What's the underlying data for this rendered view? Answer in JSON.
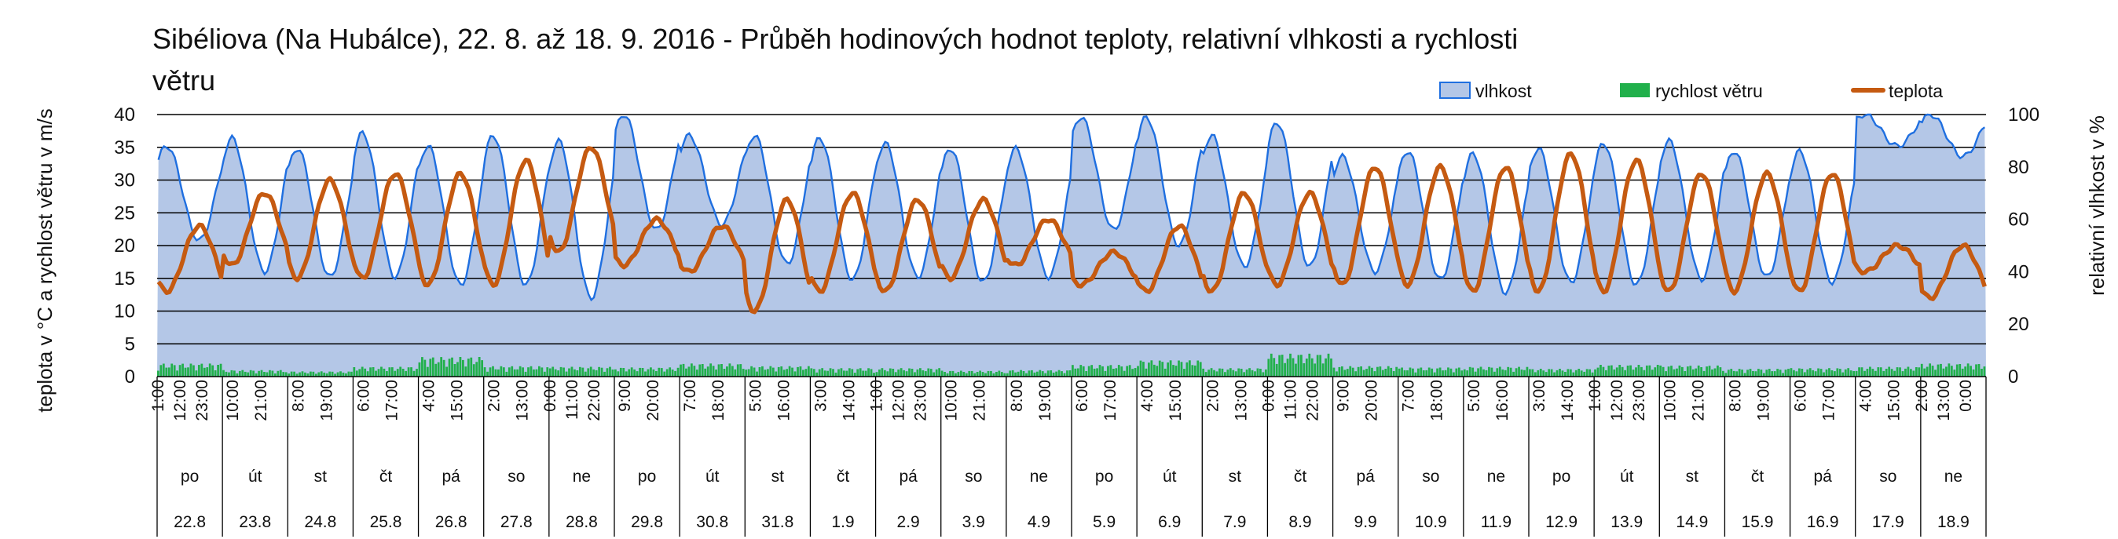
{
  "chart_data": {
    "type": "area",
    "title_line1": "Sibéliova (Na Hubálce), 22. 8. až 18. 9. 2016 - Průběh hodinových hodnot teploty, relativní vlhkosti a rychlosti",
    "title_line2": "větru",
    "ylabel_left": "teplota v °C a rychlost větru v m/s",
    "ylabel_right": "relativní vlhkost v %",
    "y_left_lim": [
      0,
      40
    ],
    "y_left_ticks": [
      "0",
      "5",
      "10",
      "15",
      "20",
      "25",
      "30",
      "35",
      "40"
    ],
    "y_right_lim": [
      0,
      100
    ],
    "y_right_ticks": [
      "0",
      "20",
      "40",
      "60",
      "80",
      "100"
    ],
    "grid": "horizontal",
    "legend_position": "top-right",
    "colors": {
      "humidity_fill": "#b4c7e7",
      "humidity_line": "#1f6fe0",
      "wind": "#21b04b",
      "temperature": "#c55a11",
      "grid": "#000000"
    },
    "legend": [
      {
        "key": "humidity",
        "label": "vlhkost"
      },
      {
        "key": "wind",
        "label": "rychlost větru"
      },
      {
        "key": "temperature",
        "label": "teplota"
      }
    ],
    "days": [
      {
        "date": "22.8",
        "weekday": "po",
        "hours": [
          "1:00",
          "12:00",
          "23:00"
        ]
      },
      {
        "date": "23.8",
        "weekday": "út",
        "hours": [
          "10:00",
          "21:00"
        ]
      },
      {
        "date": "24.8",
        "weekday": "st",
        "hours": [
          "8:00",
          "19:00"
        ]
      },
      {
        "date": "25.8",
        "weekday": "čt",
        "hours": [
          "6:00",
          "17:00"
        ]
      },
      {
        "date": "26.8",
        "weekday": "pá",
        "hours": [
          "4:00",
          "15:00"
        ]
      },
      {
        "date": "27.8",
        "weekday": "so",
        "hours": [
          "2:00",
          "13:00"
        ]
      },
      {
        "date": "28.8",
        "weekday": "ne",
        "hours": [
          "0:00",
          "11:00",
          "22:00"
        ]
      },
      {
        "date": "29.8",
        "weekday": "po",
        "hours": [
          "9:00",
          "20:00"
        ]
      },
      {
        "date": "30.8",
        "weekday": "út",
        "hours": [
          "7:00",
          "18:00"
        ]
      },
      {
        "date": "31.8",
        "weekday": "st",
        "hours": [
          "5:00",
          "16:00"
        ]
      },
      {
        "date": "1.9",
        "weekday": "čt",
        "hours": [
          "3:00",
          "14:00"
        ]
      },
      {
        "date": "2.9",
        "weekday": "pá",
        "hours": [
          "1:00",
          "12:00",
          "23:00"
        ]
      },
      {
        "date": "3.9",
        "weekday": "so",
        "hours": [
          "10:00",
          "21:00"
        ]
      },
      {
        "date": "4.9",
        "weekday": "ne",
        "hours": [
          "8:00",
          "19:00"
        ]
      },
      {
        "date": "5.9",
        "weekday": "po",
        "hours": [
          "6:00",
          "17:00"
        ]
      },
      {
        "date": "6.9",
        "weekday": "út",
        "hours": [
          "4:00",
          "15:00"
        ]
      },
      {
        "date": "7.9",
        "weekday": "st",
        "hours": [
          "2:00",
          "13:00"
        ]
      },
      {
        "date": "8.9",
        "weekday": "čt",
        "hours": [
          "0:00",
          "11:00",
          "22:00"
        ]
      },
      {
        "date": "9.9",
        "weekday": "pá",
        "hours": [
          "9:00",
          "20:00"
        ]
      },
      {
        "date": "10.9",
        "weekday": "so",
        "hours": [
          "7:00",
          "18:00"
        ]
      },
      {
        "date": "11.9",
        "weekday": "ne",
        "hours": [
          "5:00",
          "16:00"
        ]
      },
      {
        "date": "12.9",
        "weekday": "po",
        "hours": [
          "3:00",
          "14:00"
        ]
      },
      {
        "date": "13.9",
        "weekday": "út",
        "hours": [
          "1:00",
          "12:00",
          "23:00"
        ]
      },
      {
        "date": "14.9",
        "weekday": "st",
        "hours": [
          "10:00",
          "21:00"
        ]
      },
      {
        "date": "15.9",
        "weekday": "čt",
        "hours": [
          "8:00",
          "19:00"
        ]
      },
      {
        "date": "16.9",
        "weekday": "pá",
        "hours": [
          "6:00",
          "17:00"
        ]
      },
      {
        "date": "17.9",
        "weekday": "so",
        "hours": [
          "4:00",
          "15:00"
        ]
      },
      {
        "date": "18.9",
        "weekday": "ne",
        "hours": [
          "2:00",
          "13:00",
          "0:00"
        ]
      }
    ],
    "daily_series": {
      "temperature_min": [
        13,
        17,
        15,
        15,
        14,
        14,
        19,
        17,
        16,
        10,
        13,
        13,
        15,
        17,
        14,
        13,
        13,
        14,
        14,
        14,
        13,
        13,
        13,
        13,
        13,
        13,
        16,
        12
      ],
      "temperature_max": [
        23,
        28,
        30,
        31,
        31,
        33,
        35,
        24,
        23,
        27,
        28,
        27,
        27,
        24,
        19,
        23,
        28,
        28,
        32,
        32,
        32,
        34,
        33,
        31,
        31,
        31,
        20,
        20
      ],
      "humidity_min": [
        52,
        40,
        38,
        38,
        35,
        35,
        30,
        56,
        58,
        43,
        37,
        38,
        36,
        38,
        56,
        50,
        42,
        42,
        40,
        37,
        32,
        36,
        35,
        37,
        38,
        36,
        88,
        84
      ],
      "humidity_max": [
        88,
        91,
        87,
        93,
        88,
        92,
        90,
        100,
        92,
        92,
        91,
        89,
        87,
        87,
        99,
        99,
        92,
        97,
        84,
        86,
        85,
        87,
        89,
        90,
        86,
        86,
        100,
        100
      ],
      "wind_max": [
        2.0,
        1.0,
        0.8,
        1.5,
        3.0,
        1.6,
        1.5,
        1.4,
        2.0,
        1.6,
        1.3,
        1.3,
        0.9,
        1.0,
        1.8,
        2.5,
        1.3,
        3.5,
        1.6,
        1.4,
        1.5,
        1.2,
        1.8,
        1.7,
        1.2,
        1.3,
        1.5,
        2.0
      ]
    }
  }
}
